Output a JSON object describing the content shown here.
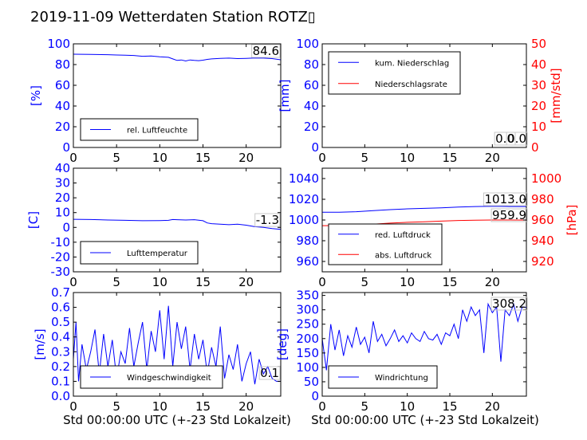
{
  "title": "2019-11-09 Wetterdaten Station ROTZ▯",
  "xlabel": "Std 00:00:00 UTC (+-23 Std Lokalzeit)",
  "colors": {
    "left_axis": "#0000ff",
    "right_axis": "#ff0000"
  },
  "chart_data": [
    {
      "type": "line",
      "xlim": [
        0,
        24
      ],
      "xticks": [
        0,
        5,
        10,
        15,
        20
      ],
      "ylabel": "[%]",
      "ylim": [
        0,
        100
      ],
      "yticks": [
        0,
        20,
        40,
        60,
        80,
        100
      ],
      "series": [
        {
          "name": "rel. Luftfeuchte",
          "color": "#0000ff",
          "x": [
            0,
            2,
            4,
            5,
            6,
            7,
            8,
            9,
            10,
            11,
            11.5,
            12,
            12.5,
            13,
            13.5,
            14,
            14.5,
            15,
            15.5,
            16,
            17,
            18,
            19,
            20,
            21,
            22,
            23,
            24
          ],
          "y": [
            90,
            89.8,
            89.5,
            89.2,
            89,
            88.8,
            88,
            88.2,
            87.5,
            87,
            85.5,
            84,
            84.5,
            83.5,
            84.5,
            84,
            83.8,
            84.2,
            85,
            85.5,
            86,
            86.2,
            85.8,
            86,
            86.4,
            86.2,
            85.8,
            84.6
          ]
        }
      ],
      "value_labels": [
        "84.6"
      ],
      "legend": "lower-left",
      "grid": false
    },
    {
      "type": "line",
      "xlim": [
        0,
        24
      ],
      "xticks": [
        0,
        5,
        10,
        15,
        20
      ],
      "ylabel": "[mm]",
      "ylim": [
        0,
        100
      ],
      "yticks": [
        0,
        20,
        40,
        60,
        80,
        100
      ],
      "y2label": "[mm/std]",
      "y2lim": [
        0,
        50
      ],
      "y2ticks": [
        0,
        10,
        20,
        30,
        40,
        50
      ],
      "series": [
        {
          "name": "kum. Niederschlag",
          "color": "#0000ff",
          "x": [
            0,
            24
          ],
          "y": [
            0,
            0
          ]
        },
        {
          "name": "Niederschlagsrate",
          "color": "#ff0000",
          "axis": "right",
          "x": [
            0,
            24
          ],
          "y": [
            0,
            0
          ]
        }
      ],
      "value_labels": [
        "0.0",
        "0.0"
      ],
      "legend": "upper-left",
      "grid": false
    },
    {
      "type": "line",
      "xlim": [
        0,
        24
      ],
      "xticks": [
        0,
        5,
        10,
        15,
        20
      ],
      "ylabel": "[C]",
      "ylim": [
        -30,
        40
      ],
      "yticks": [
        -30,
        -20,
        -10,
        0,
        10,
        20,
        30,
        40
      ],
      "series": [
        {
          "name": "Lufttemperatur",
          "color": "#0000ff",
          "x": [
            0,
            2,
            4,
            6,
            8,
            10,
            11,
            11.5,
            12,
            13,
            14,
            15,
            15.5,
            16,
            17,
            18,
            19,
            20,
            21,
            22,
            23,
            24
          ],
          "y": [
            5.5,
            5.3,
            5,
            4.8,
            4.5,
            4.6,
            4.8,
            5.3,
            5.2,
            5,
            5.2,
            4.5,
            3,
            2.5,
            2.2,
            1.8,
            2.2,
            1.5,
            0.5,
            0,
            -0.8,
            -1.3
          ]
        }
      ],
      "value_labels": [
        "-1.3"
      ],
      "legend": "lower-left",
      "grid": false
    },
    {
      "type": "line",
      "xlim": [
        0,
        24
      ],
      "xticks": [
        0,
        5,
        10,
        15,
        20
      ],
      "ylabel": "",
      "ylim": [
        950,
        1050
      ],
      "yticks": [
        960,
        980,
        1000,
        1020,
        1040
      ],
      "y2label": "[hPa]",
      "y2lim": [
        910,
        1010
      ],
      "y2ticks": [
        920,
        940,
        960,
        980,
        1000
      ],
      "series": [
        {
          "name": "red. Luftdruck",
          "color": "#0000ff",
          "x": [
            0,
            2,
            4,
            6,
            8,
            10,
            12,
            14,
            16,
            18,
            20,
            22,
            24
          ],
          "y": [
            1007.5,
            1007.5,
            1008,
            1009,
            1010,
            1010.8,
            1011.2,
            1011.8,
            1012.5,
            1013,
            1013.2,
            1013,
            1013
          ]
        },
        {
          "name": "abs. Luftdruck",
          "color": "#ff0000",
          "axis": "right",
          "x": [
            0,
            2,
            4,
            6,
            8,
            10,
            12,
            14,
            16,
            18,
            20,
            22,
            24
          ],
          "y": [
            954.5,
            954.6,
            955,
            956,
            957,
            957.8,
            958.3,
            958.9,
            959.5,
            959.8,
            960,
            960,
            959.9
          ]
        }
      ],
      "value_labels": [
        "1013.0",
        "959.9"
      ],
      "legend": "lower-left",
      "grid": false
    },
    {
      "type": "line",
      "xlim": [
        0,
        24
      ],
      "xticks": [
        0,
        5,
        10,
        15,
        20
      ],
      "ylabel": "[m/s]",
      "ylim": [
        0,
        0.7
      ],
      "yticks": [
        0,
        0.1,
        0.2,
        0.3,
        0.4,
        0.5,
        0.6,
        0.7
      ],
      "ytick_labels": [
        "0.0",
        "0.1",
        "0.2",
        "0.3",
        "0.4",
        "0.5",
        "0.6",
        "0.7"
      ],
      "series": [
        {
          "name": "Windgeschwindigkeit",
          "color": "#0000ff",
          "x": [
            0,
            0.3,
            0.6,
            1,
            1.5,
            2,
            2.5,
            3,
            3.5,
            4,
            4.5,
            5,
            5.5,
            6,
            6.5,
            7,
            7.5,
            8,
            8.5,
            9,
            9.5,
            10,
            10.5,
            11,
            11.5,
            12,
            12.5,
            13,
            13.5,
            14,
            14.5,
            15,
            15.5,
            16,
            16.5,
            17,
            17.5,
            18,
            18.5,
            19,
            19.5,
            20,
            20.5,
            21,
            21.5,
            22,
            22.5,
            23,
            23.5,
            24
          ],
          "y": [
            0.25,
            0.5,
            0.1,
            0.35,
            0.18,
            0.3,
            0.45,
            0.15,
            0.42,
            0.2,
            0.38,
            0.12,
            0.3,
            0.22,
            0.46,
            0.2,
            0.36,
            0.5,
            0.18,
            0.44,
            0.3,
            0.58,
            0.25,
            0.61,
            0.2,
            0.5,
            0.32,
            0.47,
            0.18,
            0.42,
            0.25,
            0.38,
            0.15,
            0.33,
            0.2,
            0.47,
            0.12,
            0.28,
            0.18,
            0.35,
            0.1,
            0.22,
            0.3,
            0.08,
            0.25,
            0.15,
            0.2,
            0.12,
            0.1,
            0.1
          ]
        }
      ],
      "value_labels": [
        "0.1"
      ],
      "legend": "lower-left",
      "grid": false
    },
    {
      "type": "line",
      "xlim": [
        0,
        24
      ],
      "xticks": [
        0,
        5,
        10,
        15,
        20
      ],
      "ylabel": "[deg]",
      "ylim": [
        0,
        360
      ],
      "yticks": [
        0,
        50,
        100,
        150,
        200,
        250,
        300,
        350
      ],
      "series": [
        {
          "name": "Windrichtung",
          "color": "#0000ff",
          "x": [
            0,
            0.5,
            1,
            1.5,
            2,
            2.5,
            3,
            3.5,
            4,
            4.5,
            5,
            5.5,
            6,
            6.5,
            7,
            7.5,
            8,
            8.5,
            9,
            9.5,
            10,
            10.5,
            11,
            11.5,
            12,
            12.5,
            13,
            13.5,
            14,
            14.5,
            15,
            15.5,
            16,
            16.5,
            17,
            17.5,
            18,
            18.5,
            19,
            19.5,
            20,
            20.5,
            21,
            21.5,
            22,
            22.5,
            23,
            23.5,
            24
          ],
          "y": [
            200,
            90,
            250,
            160,
            230,
            140,
            210,
            170,
            240,
            180,
            205,
            150,
            260,
            190,
            215,
            175,
            200,
            230,
            190,
            210,
            185,
            220,
            200,
            190,
            225,
            200,
            195,
            215,
            180,
            220,
            210,
            250,
            200,
            300,
            260,
            310,
            280,
            300,
            150,
            320,
            290,
            310,
            120,
            300,
            280,
            320,
            260,
            310,
            308.2
          ]
        }
      ],
      "value_labels": [
        "308.2"
      ],
      "legend": "lower-left",
      "grid": false
    }
  ]
}
